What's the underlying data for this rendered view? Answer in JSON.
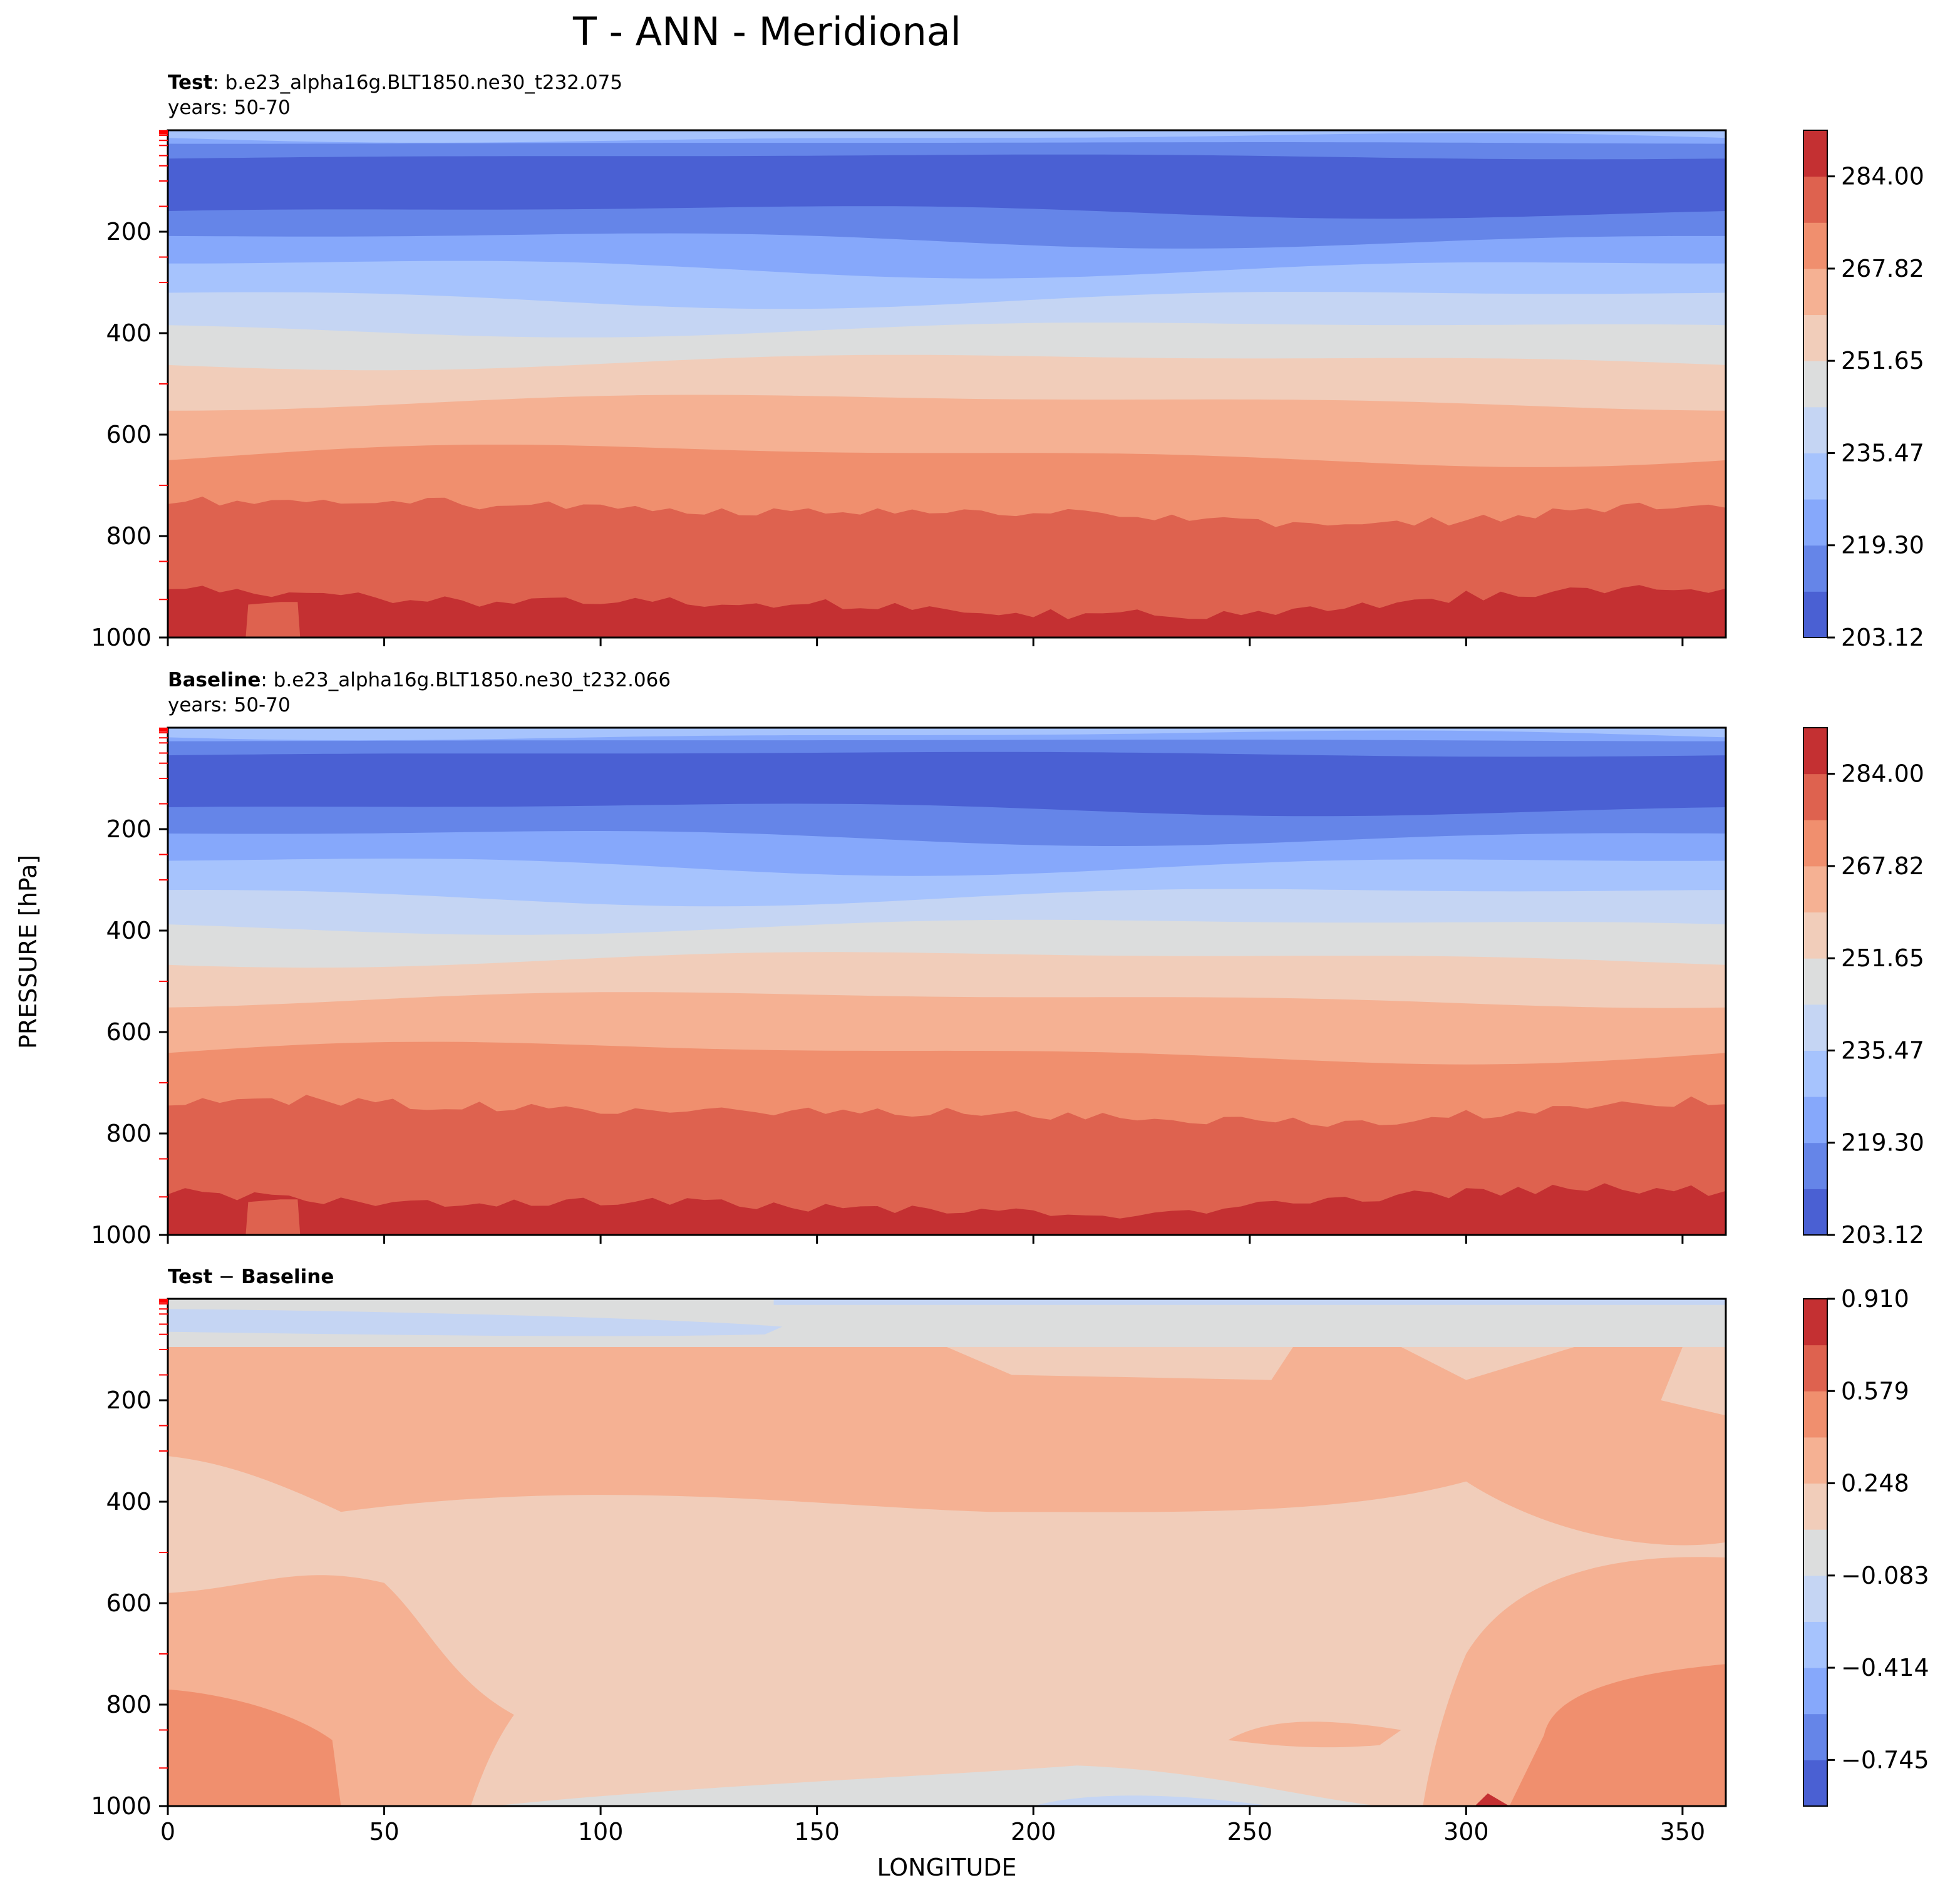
{
  "figure": {
    "title": "T - ANN - Meridional",
    "ylabel": "PRESSURE [hPa]",
    "xlabel": "LONGITUDE"
  },
  "colors": {
    "band_colors": [
      "#4a60d3",
      "#6585e8",
      "#86a8fb",
      "#a6c3fd",
      "#c5d5f3",
      "#dcdddd",
      "#f1cdba",
      "#f5b193",
      "#f08f6e",
      "#de624f",
      "#c43032"
    ]
  },
  "chart_data": [
    {
      "type": "heatmap",
      "panel": "test",
      "title_bold": "Test",
      "title_rest": ": b.e23_alpha16g.BLT1850.ne30_t232.075",
      "subtitle": "years: 50-70",
      "xlim": [
        0,
        360
      ],
      "ylim": [
        1000,
        0
      ],
      "x_ticks": [
        0,
        50,
        100,
        150,
        200,
        250,
        300,
        350
      ],
      "y_ticks": [
        200,
        400,
        600,
        800,
        1000
      ],
      "y_tick_labels": [
        "200",
        "400",
        "600",
        "800",
        "1000"
      ],
      "red_minor_ticks": [
        1,
        2,
        3,
        5,
        7,
        10,
        20,
        30,
        50,
        70,
        100,
        150,
        250,
        300,
        500,
        700,
        850,
        925
      ],
      "contour_boundaries_pressure_hPa": [
        15,
        25,
        52,
        160,
        215,
        270,
        330,
        390,
        455,
        535,
        640,
        750,
        930
      ],
      "colorbar": {
        "levels": [
          203.12,
          219.3,
          235.47,
          251.65,
          267.82,
          284.0
        ],
        "tick_labels": [
          "203.12",
          "219.30",
          "235.47",
          "251.65",
          "267.82",
          "284.00"
        ],
        "n_bands": 11
      }
    },
    {
      "type": "heatmap",
      "panel": "baseline",
      "title_bold": "Baseline",
      "title_rest": ": b.e23_alpha16g.BLT1850.ne30_t232.066",
      "subtitle": "years: 50-70",
      "xlim": [
        0,
        360
      ],
      "ylim": [
        1000,
        0
      ],
      "x_ticks": [
        0,
        50,
        100,
        150,
        200,
        250,
        300,
        350
      ],
      "y_ticks": [
        200,
        400,
        600,
        800,
        1000
      ],
      "y_tick_labels": [
        "200",
        "400",
        "600",
        "800",
        "1000"
      ],
      "red_minor_ticks": [
        1,
        2,
        3,
        5,
        7,
        10,
        20,
        30,
        50,
        70,
        100,
        150,
        250,
        300,
        500,
        700,
        850,
        925
      ],
      "contour_boundaries_pressure_hPa": [
        15,
        25,
        52,
        160,
        215,
        270,
        330,
        390,
        455,
        535,
        640,
        755,
        935
      ],
      "colorbar": {
        "levels": [
          203.12,
          219.3,
          235.47,
          251.65,
          267.82,
          284.0
        ],
        "tick_labels": [
          "203.12",
          "219.30",
          "235.47",
          "251.65",
          "267.82",
          "284.00"
        ],
        "n_bands": 11
      }
    },
    {
      "type": "heatmap",
      "panel": "difference",
      "title_bold_a": "Test",
      "title_mid": " − ",
      "title_bold_b": "Baseline",
      "xlim": [
        0,
        360
      ],
      "ylim": [
        1000,
        0
      ],
      "x_ticks": [
        0,
        50,
        100,
        150,
        200,
        250,
        300,
        350
      ],
      "x_tick_labels": [
        "0",
        "50",
        "100",
        "150",
        "200",
        "250",
        "300",
        "350"
      ],
      "y_ticks": [
        200,
        400,
        600,
        800,
        1000
      ],
      "y_tick_labels": [
        "200",
        "400",
        "600",
        "800",
        "1000"
      ],
      "red_minor_ticks": [
        1,
        2,
        3,
        5,
        7,
        10,
        20,
        30,
        50,
        70,
        100,
        150,
        250,
        300,
        500,
        700,
        850,
        925
      ],
      "colorbar": {
        "levels": [
          -0.745,
          -0.414,
          -0.083,
          0.248,
          0.579,
          0.91
        ],
        "tick_labels": [
          "−0.745",
          "−0.414",
          "−0.083",
          "0.248",
          "0.579",
          "0.910"
        ],
        "n_bands": 11
      }
    }
  ]
}
